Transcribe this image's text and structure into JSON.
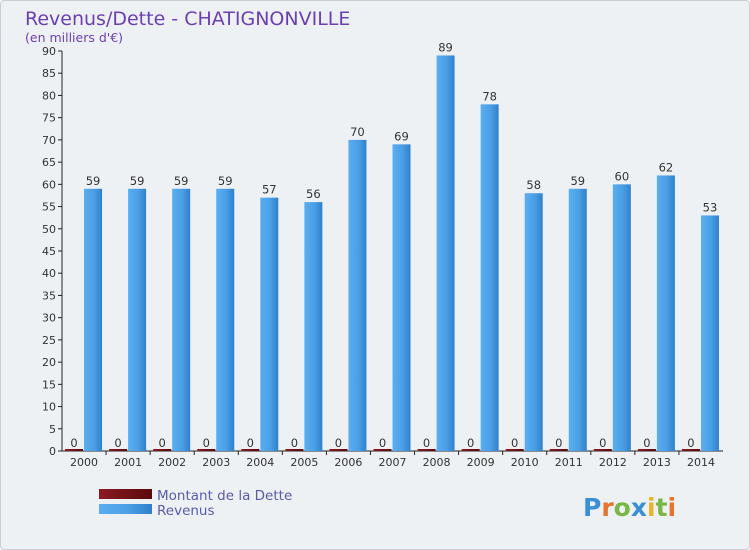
{
  "colors": {
    "revenus": "#4aa0e6",
    "revenus_dark": "#2a78c2",
    "dette": "#6b0b10",
    "title": "#6b3fb2",
    "legend_text": "#5a5aa8"
  },
  "chart_data": {
    "type": "bar",
    "title": "Revenus/Dette - CHATIGNONVILLE",
    "subtitle": "(en milliers d'€)",
    "categories": [
      "2000",
      "2001",
      "2002",
      "2003",
      "2004",
      "2005",
      "2006",
      "2007",
      "2008",
      "2009",
      "2010",
      "2011",
      "2012",
      "2013",
      "2014"
    ],
    "series": [
      {
        "name": "Montant de la Dette",
        "values": [
          0,
          0,
          0,
          0,
          0,
          0,
          0,
          0,
          0,
          0,
          0,
          0,
          0,
          0,
          0
        ]
      },
      {
        "name": "Revenus",
        "values": [
          59,
          59,
          59,
          59,
          57,
          56,
          70,
          69,
          89,
          78,
          58,
          59,
          60,
          62,
          53
        ]
      }
    ],
    "ylim": [
      0,
      90
    ],
    "yticks": [
      0,
      5,
      10,
      15,
      20,
      25,
      30,
      35,
      40,
      45,
      50,
      55,
      60,
      65,
      70,
      75,
      80,
      85,
      90
    ],
    "grid": false,
    "legend_position": "bottom-left"
  },
  "watermark": "Proxiti"
}
